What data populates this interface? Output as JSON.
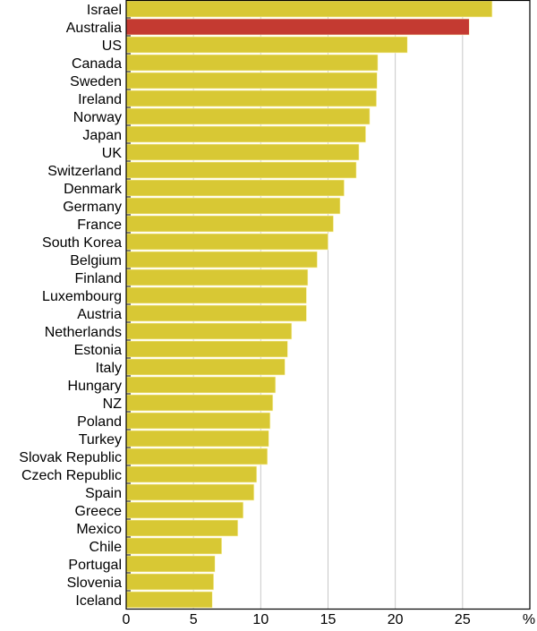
{
  "chart_data": {
    "type": "bar",
    "orientation": "horizontal",
    "title": "",
    "xlabel": "",
    "ylabel": "",
    "unit_label": "%",
    "xlim": [
      0,
      30
    ],
    "xticks": [
      0,
      5,
      10,
      15,
      20,
      25
    ],
    "grid": true,
    "colors": {
      "default": "#d8c834",
      "highlight": "#c43a31"
    },
    "highlight": "Australia",
    "categories": [
      "Israel",
      "Australia",
      "US",
      "Canada",
      "Sweden",
      "Ireland",
      "Norway",
      "Japan",
      "UK",
      "Switzerland",
      "Denmark",
      "Germany",
      "France",
      "South Korea",
      "Belgium",
      "Finland",
      "Luxembourg",
      "Austria",
      "Netherlands",
      "Estonia",
      "Italy",
      "Hungary",
      "NZ",
      "Poland",
      "Turkey",
      "Slovak Republic",
      "Czech Republic",
      "Spain",
      "Greece",
      "Mexico",
      "Chile",
      "Portugal",
      "Slovenia",
      "Iceland"
    ],
    "values": [
      27.2,
      25.5,
      20.9,
      18.7,
      18.65,
      18.6,
      18.1,
      17.8,
      17.3,
      17.1,
      16.2,
      15.9,
      15.4,
      15.0,
      14.2,
      13.5,
      13.4,
      13.4,
      12.3,
      12.0,
      11.8,
      11.1,
      10.9,
      10.7,
      10.6,
      10.5,
      9.7,
      9.5,
      8.7,
      8.3,
      7.1,
      6.6,
      6.5,
      6.4
    ]
  }
}
